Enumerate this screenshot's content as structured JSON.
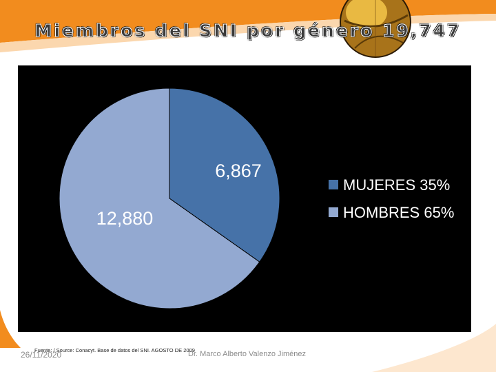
{
  "slide": {
    "title": "Miembros del SNI por género 19,747",
    "date": "26/11/2020",
    "source": "Fuente: / Source: Conacyt. Base de datos del SNI. AGOSTO DE 2009",
    "author": "Dr. Marco Alberto Valenzo Jiménez"
  },
  "colors": {
    "swoosh": "#f28c1e",
    "panel": "#000000",
    "mujeres": "#4672a8",
    "hombres": "#93a9d1",
    "text": "#ffffff"
  },
  "chart_data": {
    "type": "pie",
    "slices": [
      {
        "legend": "MUJERES 35%",
        "value": 6867,
        "label": "6,867",
        "color": "#4672a8"
      },
      {
        "legend": "HOMBRES 65%",
        "value": 12880,
        "label": "12,880",
        "color": "#93a9d1"
      }
    ],
    "legend_position": "right"
  }
}
